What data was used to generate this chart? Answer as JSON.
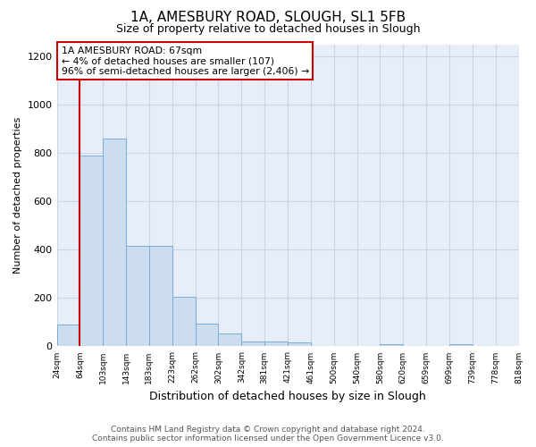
{
  "title": "1A, AMESBURY ROAD, SLOUGH, SL1 5FB",
  "subtitle": "Size of property relative to detached houses in Slough",
  "xlabel": "Distribution of detached houses by size in Slough",
  "ylabel": "Number of detached properties",
  "bar_values": [
    90,
    790,
    860,
    415,
    415,
    205,
    95,
    55,
    20,
    20,
    15,
    0,
    0,
    0,
    10,
    0,
    0,
    10,
    0,
    0
  ],
  "bar_labels": [
    "24sqm",
    "64sqm",
    "103sqm",
    "143sqm",
    "183sqm",
    "223sqm",
    "262sqm",
    "302sqm",
    "342sqm",
    "381sqm",
    "421sqm",
    "461sqm",
    "500sqm",
    "540sqm",
    "580sqm",
    "620sqm",
    "659sqm",
    "699sqm",
    "739sqm",
    "778sqm",
    "818sqm"
  ],
  "bar_color": "#ccddf0",
  "bar_edge_color": "#7aadd4",
  "annotation_box_text": "1A AMESBURY ROAD: 67sqm\n← 4% of detached houses are smaller (107)\n96% of semi-detached houses are larger (2,406) →",
  "annotation_box_color": "#ffffff",
  "annotation_box_edge_color": "#cc0000",
  "vline_x": 1.0,
  "vline_color": "#cc0000",
  "ylim": [
    0,
    1250
  ],
  "yticks": [
    0,
    200,
    400,
    600,
    800,
    1000,
    1200
  ],
  "grid_color": "#c8d4e8",
  "background_color": "#e8eef8",
  "footer_text": "Contains HM Land Registry data © Crown copyright and database right 2024.\nContains public sector information licensed under the Open Government Licence v3.0.",
  "title_fontsize": 11,
  "subtitle_fontsize": 9,
  "title_fontweight": "normal"
}
